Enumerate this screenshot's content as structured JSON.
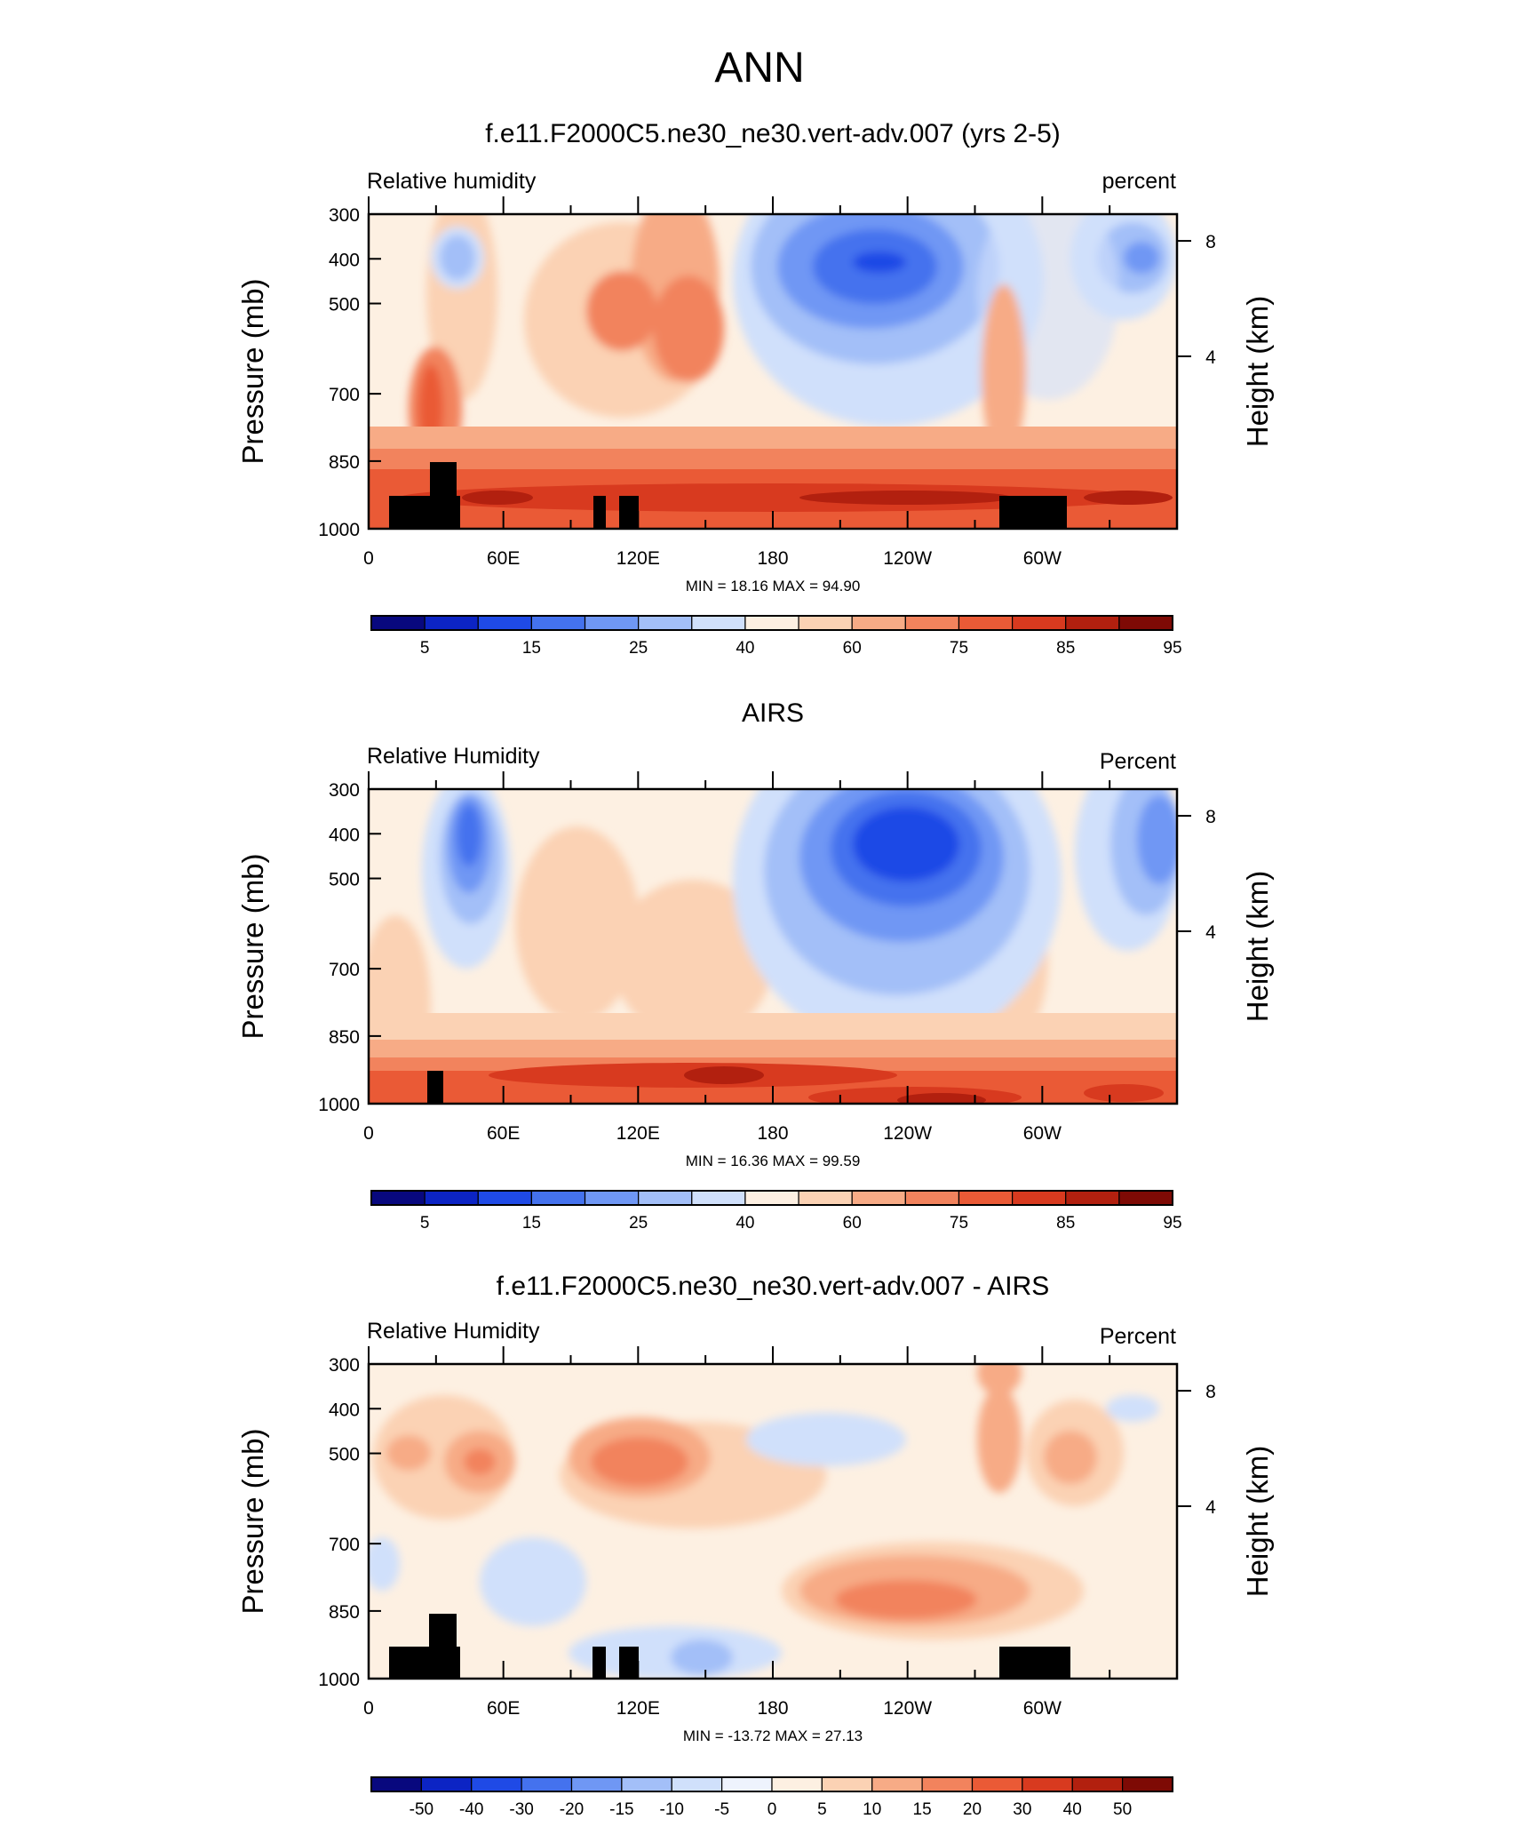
{
  "page": {
    "title": "ANN"
  },
  "colors": {
    "abs_levels": [
      "#08087e",
      "#0c24c4",
      "#1f4ae6",
      "#4472ee",
      "#6f97f4",
      "#a3bff8",
      "#d0e0fb",
      "#fdf0e2",
      "#fbd2b4",
      "#f7ab86",
      "#f2835d",
      "#ea5a36",
      "#d83a1f",
      "#b2200f",
      "#7e0a05"
    ],
    "diff_levels": [
      "#08087e",
      "#0c24c4",
      "#1f4ae6",
      "#4472ee",
      "#6f97f4",
      "#a3bff8",
      "#d0e0fb",
      "#eef3fd",
      "#fdf0e2",
      "#fbd2b4",
      "#f7ab86",
      "#f2835d",
      "#ea5a36",
      "#d83a1f",
      "#b2200f",
      "#7e0a05"
    ],
    "topography": "#000000"
  },
  "chart_data": [
    {
      "type": "heatmap",
      "title": "f.e11.F2000C5.ne30_ne30.vert-adv.007 (yrs 2-5)",
      "left_label": "Relative humidity",
      "right_label": "percent",
      "ylabel": "Pressure (mb)",
      "ylabel_right": "Height (km)",
      "x_ticks": [
        "0",
        "60E",
        "120E",
        "180",
        "120W",
        "60W"
      ],
      "y_ticks": [
        "300",
        "400",
        "500",
        "700",
        "850",
        "1000"
      ],
      "y_ticks_right": [
        "8",
        "4"
      ],
      "stats": "MIN =  18.16  MAX =  94.90",
      "colorbar_labels": [
        "5",
        "15",
        "25",
        "40",
        "60",
        "75",
        "85",
        "95"
      ],
      "min": 18.16,
      "max": 94.9
    },
    {
      "type": "heatmap",
      "title": "AIRS",
      "left_label": "Relative Humidity",
      "right_label": "Percent",
      "ylabel": "Pressure (mb)",
      "ylabel_right": "Height (km)",
      "x_ticks": [
        "0",
        "60E",
        "120E",
        "180",
        "120W",
        "60W"
      ],
      "y_ticks": [
        "300",
        "400",
        "500",
        "700",
        "850",
        "1000"
      ],
      "y_ticks_right": [
        "8",
        "4"
      ],
      "stats": "MIN =  16.36  MAX =  99.59",
      "colorbar_labels": [
        "5",
        "15",
        "25",
        "40",
        "60",
        "75",
        "85",
        "95"
      ],
      "min": 16.36,
      "max": 99.59
    },
    {
      "type": "heatmap",
      "title": "f.e11.F2000C5.ne30_ne30.vert-adv.007 - AIRS",
      "left_label": "Relative Humidity",
      "right_label": "Percent",
      "ylabel": "Pressure (mb)",
      "ylabel_right": "Height (km)",
      "x_ticks": [
        "0",
        "60E",
        "120E",
        "180",
        "120W",
        "60W"
      ],
      "y_ticks": [
        "300",
        "400",
        "500",
        "700",
        "850",
        "1000"
      ],
      "y_ticks_right": [
        "8",
        "4"
      ],
      "stats": "MIN = -13.72  MAX =  27.13",
      "colorbar_labels": [
        "-50",
        "-40",
        "-30",
        "-20",
        "-15",
        "-10",
        "-5",
        "0",
        "5",
        "10",
        "15",
        "20",
        "30",
        "40",
        "50"
      ],
      "min": -13.72,
      "max": 27.13
    }
  ]
}
